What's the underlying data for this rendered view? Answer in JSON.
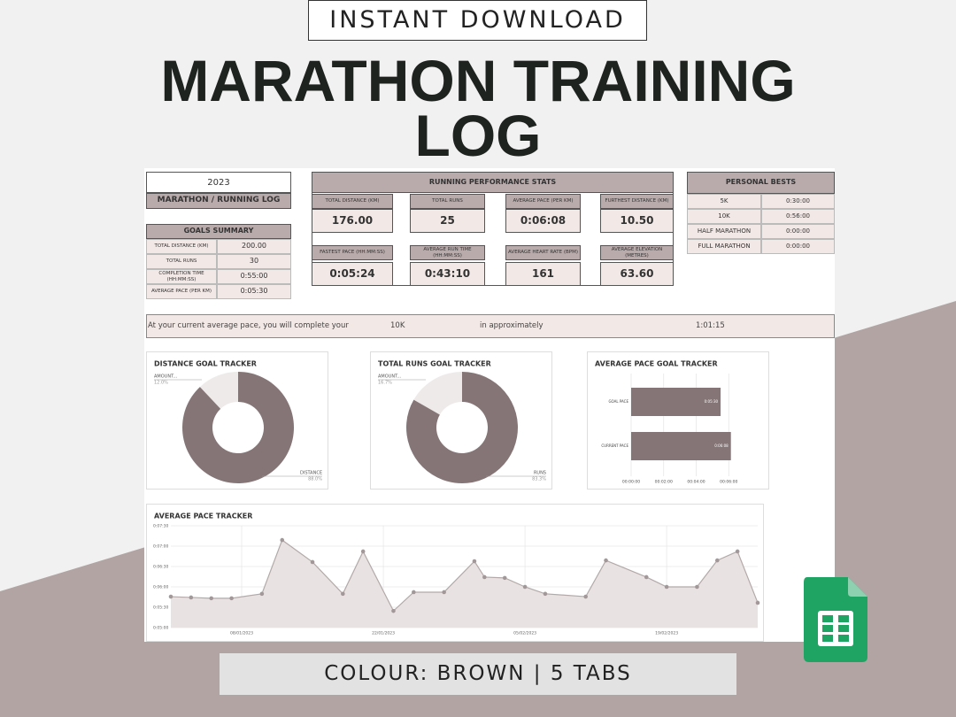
{
  "banner": {
    "top": "INSTANT DOWNLOAD",
    "title": "MARATHON TRAINING LOG",
    "bottom": "COLOUR: BROWN | 5 TABS"
  },
  "log": {
    "year": "2023",
    "name": "MARATHON / RUNNING LOG"
  },
  "goals": {
    "title": "GOALS SUMMARY",
    "rows": [
      [
        "TOTAL DISTANCE (KM)",
        "200.00"
      ],
      [
        "TOTAL RUNS",
        "30"
      ],
      [
        "COMPLETION TIME (HH:MM:SS)",
        "0:55:00"
      ],
      [
        "AVERAGE PACE (PER KM)",
        "0:05:30"
      ]
    ]
  },
  "stats": {
    "title": "RUNNING PERFORMANCE STATS",
    "cards": [
      {
        "label": "TOTAL DISTANCE (KM)",
        "value": "176.00"
      },
      {
        "label": "TOTAL RUNS",
        "value": "25"
      },
      {
        "label": "AVERAGE PACE (PER KM)",
        "value": "0:06:08"
      },
      {
        "label": "FURTHEST DISTANCE (KM)",
        "value": "10.50"
      },
      {
        "label": "FASTEST PACE (HH:MM:SS)",
        "value": "0:05:24"
      },
      {
        "label": "AVERAGE RUN TIME (HH:MM:SS)",
        "value": "0:43:10"
      },
      {
        "label": "AVERAGE HEART RATE (BPM)",
        "value": "161"
      },
      {
        "label": "AVERAGE ELEVATION (METRES)",
        "value": "63.60"
      }
    ]
  },
  "bests": {
    "title": "PERSONAL BESTS",
    "rows": [
      [
        "5K",
        "0:30:00"
      ],
      [
        "10K",
        "0:56:00"
      ],
      [
        "HALF MARATHON",
        "0:00:00"
      ],
      [
        "FULL MARATHON",
        "0:00:00"
      ]
    ]
  },
  "projection": {
    "text": "At your current average pace, you will complete your",
    "distance": "10K",
    "middle": "in approximately",
    "time": "1:01:15"
  },
  "chart_data": [
    {
      "type": "donut",
      "title": "DISTANCE GOAL TRACKER",
      "categories": [
        "AMOUNT...",
        "DISTANCE"
      ],
      "values": [
        12,
        88
      ],
      "value_labels": [
        "12.0%",
        "88.0%"
      ],
      "colors": [
        "#eeeaea",
        "#857576"
      ]
    },
    {
      "type": "donut",
      "title": "TOTAL RUNS GOAL TRACKER",
      "categories": [
        "AMOUNT...",
        "RUNS"
      ],
      "values": [
        16.7,
        83.3
      ],
      "value_labels": [
        "16.7%",
        "83.3%"
      ],
      "colors": [
        "#eeeaea",
        "#857576"
      ]
    },
    {
      "type": "hbar",
      "title": "AVERAGE PACE GOAL TRACKER",
      "categories": [
        "GOAL PACE",
        "CURRENT PACE"
      ],
      "values": [
        5.5,
        6.133
      ],
      "value_labels": [
        "0:05:30",
        "0:06:08"
      ],
      "color": "#857576",
      "xlim": [
        0,
        8
      ],
      "xticks": [
        {
          "value": 0,
          "label": "00:00:00"
        },
        {
          "value": 2,
          "label": "00:02:00"
        },
        {
          "value": 4,
          "label": "00:04:00"
        },
        {
          "value": 6,
          "label": "00:06:00"
        }
      ],
      "grid": true
    },
    {
      "type": "line",
      "title": "AVERAGE PACE TRACKER",
      "x": [
        "2023-01-01",
        "2023-01-03",
        "2023-01-05",
        "2023-01-07",
        "2023-01-10",
        "2023-01-12",
        "2023-01-15",
        "2023-01-18",
        "2023-01-20",
        "2023-01-23",
        "2023-01-25",
        "2023-01-28",
        "2023-01-31",
        "2023-02-01",
        "2023-02-03",
        "2023-02-05",
        "2023-02-07",
        "2023-02-11",
        "2023-02-13",
        "2023-02-17",
        "2023-02-19",
        "2023-02-22",
        "2023-02-24",
        "2023-02-26",
        "2023-02-28"
      ],
      "values": [
        5.76,
        5.74,
        5.72,
        5.72,
        5.83,
        7.15,
        6.61,
        5.83,
        6.87,
        5.41,
        5.87,
        5.87,
        6.63,
        6.24,
        6.22,
        6.0,
        5.83,
        5.76,
        6.65,
        6.24,
        6.0,
        6.0,
        6.65,
        6.87,
        5.61
      ],
      "color": "#b3a9a9",
      "fill": "#e8e3e2",
      "xlim": [
        "2023-01-01",
        "2023-02-28"
      ],
      "ylim": [
        5,
        7.5
      ],
      "xticks": [
        {
          "value": "2023-01-08",
          "label": "08/01/2023"
        },
        {
          "value": "2023-01-22",
          "label": "22/01/2023"
        },
        {
          "value": "2023-02-05",
          "label": "05/02/2023"
        },
        {
          "value": "2023-02-19",
          "label": "19/02/2023"
        }
      ],
      "yticks": [
        {
          "value": 5,
          "label": "0:05:00"
        },
        {
          "value": 5.5,
          "label": "0:05:30"
        },
        {
          "value": 6,
          "label": "0:06:00"
        },
        {
          "value": 6.5,
          "label": "0:06:30"
        },
        {
          "value": 7,
          "label": "0:07:00"
        },
        {
          "value": 7.5,
          "label": "0:07:30"
        }
      ],
      "grid": true
    }
  ]
}
